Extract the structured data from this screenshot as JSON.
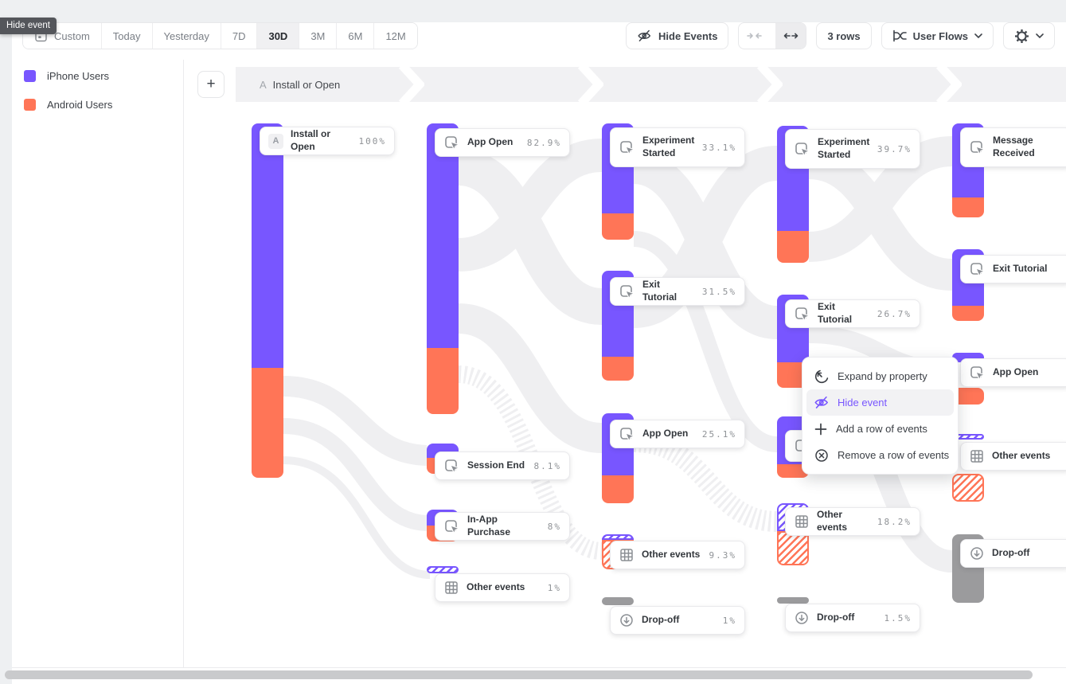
{
  "tooltip": {
    "label": "Hide event"
  },
  "toolbar": {
    "calendar_icon": "calendar-icon",
    "date_ranges": [
      "Custom",
      "Today",
      "Yesterday",
      "7D",
      "30D",
      "3M",
      "6M",
      "12M"
    ],
    "selected_range": "30D",
    "hide_events_label": "Hide Events",
    "rows_label": "3 rows",
    "view_label": "User Flows",
    "plus_label": "+"
  },
  "legend": {
    "items": [
      {
        "label": "iPhone Users",
        "color": "#7856FF"
      },
      {
        "label": "Android Users",
        "color": "#FF7557"
      }
    ]
  },
  "breadcrumb": {
    "step_letter": "A",
    "label": "Install or Open"
  },
  "context_menu": {
    "items": [
      {
        "label": "Expand by property",
        "icon": "expand-property-icon",
        "active": false
      },
      {
        "label": "Hide event",
        "icon": "hide-event-icon",
        "active": true
      },
      {
        "label": "Add a row of events",
        "icon": "add-row-icon",
        "active": false
      },
      {
        "label": "Remove a row of events",
        "icon": "remove-row-icon",
        "active": false
      }
    ]
  },
  "colors": {
    "iphone": "#7856FF",
    "android": "#FF7557",
    "dropoff": "#9B9B9D",
    "accent": "#7856FF"
  },
  "chart_data": {
    "type": "sankey",
    "title": "User Flows",
    "series": [
      {
        "name": "iPhone Users",
        "color": "#7856FF"
      },
      {
        "name": "Android Users",
        "color": "#FF7557"
      }
    ],
    "columns": [
      {
        "nodes": [
          {
            "label": "Install or Open",
            "value": "100%",
            "pct": 100,
            "icon": "letter-badge",
            "badge": "A"
          }
        ]
      },
      {
        "nodes": [
          {
            "label": "App Open",
            "value": "82.9%",
            "pct": 82.9,
            "icon": "event-icon"
          },
          {
            "label": "Session End",
            "value": "8.1%",
            "pct": 8.1,
            "icon": "event-icon"
          },
          {
            "label": "In-App Purchase",
            "value": "8%",
            "pct": 8,
            "icon": "event-icon"
          },
          {
            "label": "Other events",
            "value": "1%",
            "pct": 1,
            "icon": "grid-icon",
            "hatched": true
          }
        ]
      },
      {
        "nodes": [
          {
            "label": "Experiment Started",
            "value": "33.1%",
            "pct": 33.1,
            "icon": "event-icon"
          },
          {
            "label": "Exit Tutorial",
            "value": "31.5%",
            "pct": 31.5,
            "icon": "event-icon"
          },
          {
            "label": "App Open",
            "value": "25.1%",
            "pct": 25.1,
            "icon": "event-icon"
          },
          {
            "label": "Other events",
            "value": "9.3%",
            "pct": 9.3,
            "icon": "grid-icon",
            "hatched": true
          },
          {
            "label": "Drop-off",
            "value": "1%",
            "pct": 1,
            "icon": "dropoff-icon"
          }
        ]
      },
      {
        "nodes": [
          {
            "label": "Experiment Started",
            "value": "39.7%",
            "pct": 39.7,
            "icon": "event-icon"
          },
          {
            "label": "Exit Tutorial",
            "value": "26.7%",
            "pct": 26.7,
            "icon": "event-icon"
          },
          {
            "label": "",
            "value": "",
            "pct": null,
            "icon": "event-icon"
          },
          {
            "label": "Other events",
            "value": "18.2%",
            "pct": 18.2,
            "icon": "grid-icon",
            "hatched": true
          },
          {
            "label": "Drop-off",
            "value": "1.5%",
            "pct": 1.5,
            "icon": "dropoff-icon"
          }
        ]
      },
      {
        "nodes": [
          {
            "label": "Message Received",
            "value": "",
            "pct": null,
            "icon": "event-icon"
          },
          {
            "label": "Exit Tutorial",
            "value": "",
            "pct": null,
            "icon": "event-icon"
          },
          {
            "label": "App Open",
            "value": "",
            "pct": null,
            "icon": "event-icon"
          },
          {
            "label": "Other events",
            "value": "",
            "pct": null,
            "icon": "grid-icon",
            "hatched": true
          },
          {
            "label": "Drop-off",
            "value": "",
            "pct": null,
            "icon": "dropoff-icon"
          }
        ]
      }
    ]
  }
}
